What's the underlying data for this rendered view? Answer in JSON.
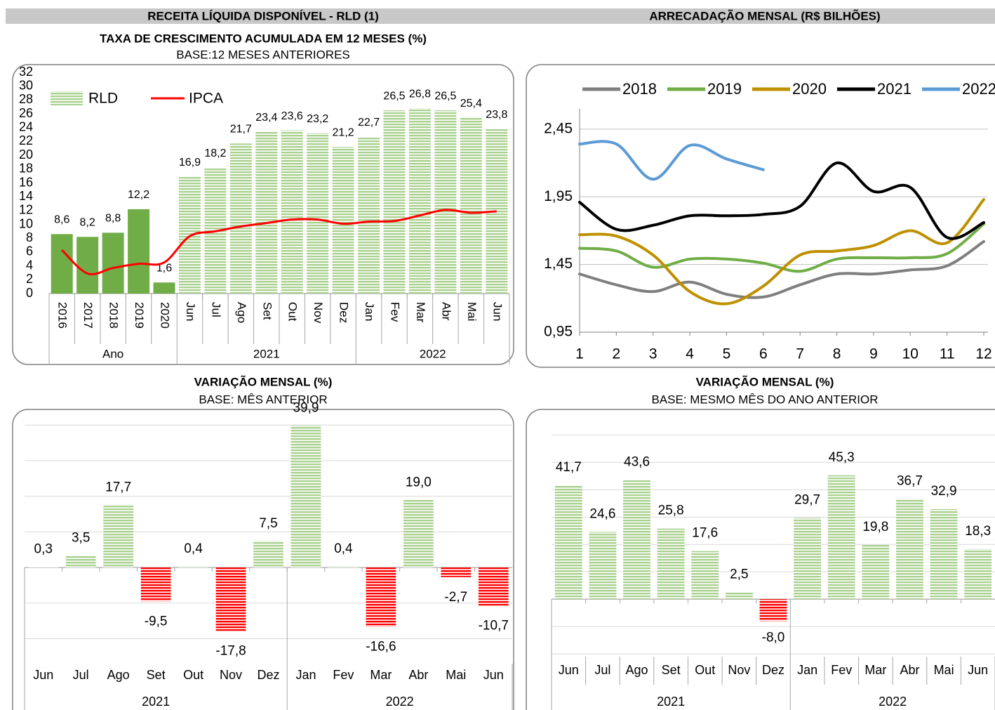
{
  "header": "RECEITA LÍQUIDA DISPONÍVEL - RLD (1)",
  "chart_data": [
    {
      "type": "bar",
      "title": "TAXA DE CRESCIMENTO ACUMULADA EM 12 MESES (%)",
      "subtitle": "BASE:12 MESES ANTERIORES",
      "category_groups": [
        {
          "name": "Ano",
          "categories": [
            "2016",
            "2017",
            "2018",
            "2019",
            "2020"
          ]
        },
        {
          "name": "2021",
          "categories": [
            "Jun",
            "Jul",
            "Ago",
            "Set",
            "Out",
            "Nov",
            "Dez"
          ]
        },
        {
          "name": "2022",
          "categories": [
            "Jan",
            "Fev",
            "Mar",
            "Abr",
            "Mai",
            "Jun"
          ]
        }
      ],
      "series": [
        {
          "name": "RLD",
          "type": "bar",
          "color": "#a9d18e",
          "colors": [
            "#70ad47",
            "#70ad47",
            "#70ad47",
            "#70ad47",
            "#70ad47",
            "#a9d18e",
            "#a9d18e",
            "#a9d18e",
            "#a9d18e",
            "#a9d18e",
            "#a9d18e",
            "#a9d18e",
            "#a9d18e",
            "#a9d18e",
            "#a9d18e",
            "#a9d18e",
            "#a9d18e",
            "#a9d18e"
          ],
          "hatched": [
            false,
            false,
            false,
            false,
            false,
            true,
            true,
            true,
            true,
            true,
            true,
            true,
            true,
            true,
            true,
            true,
            true,
            true
          ],
          "values": [
            8.6,
            8.2,
            8.8,
            12.2,
            1.6,
            16.9,
            18.2,
            21.7,
            23.4,
            23.6,
            23.2,
            21.2,
            22.7,
            26.5,
            26.8,
            26.5,
            25.4,
            23.8
          ],
          "value_labels": [
            "8,6",
            "8,2",
            "8,8",
            "12,2",
            "1,6",
            "16,9",
            "18,2",
            "21,7",
            "23,4",
            "23,6",
            "23,2",
            "21,2",
            "22,7",
            "26,5",
            "26,8",
            "26,5",
            "25,4",
            "23,8"
          ]
        },
        {
          "name": "IPCA",
          "type": "line",
          "color": "#ff0000",
          "values": [
            6.3,
            2.9,
            3.7,
            4.3,
            4.5,
            8.3,
            9.0,
            9.7,
            10.2,
            10.7,
            10.7,
            10.1,
            10.4,
            10.5,
            11.3,
            12.1,
            11.7,
            11.9
          ]
        }
      ],
      "ylim": [
        0,
        32
      ],
      "yticks": [
        0,
        2,
        4,
        6,
        8,
        10,
        12,
        14,
        16,
        18,
        20,
        22,
        24,
        26,
        28,
        30,
        32
      ],
      "grid": false,
      "ytick_labels": true
    },
    {
      "type": "line",
      "title": "ARRECADAÇÃO MENSAL (R$ BILHÕES)",
      "x": [
        1,
        2,
        3,
        4,
        5,
        6,
        7,
        8,
        9,
        10,
        11,
        12
      ],
      "series": [
        {
          "name": "2018",
          "color": "#7f7f7f",
          "values": [
            1.38,
            1.3,
            1.25,
            1.32,
            1.23,
            1.21,
            1.3,
            1.38,
            1.38,
            1.41,
            1.44,
            1.62
          ]
        },
        {
          "name": "2019",
          "color": "#70ad47",
          "values": [
            1.57,
            1.55,
            1.43,
            1.49,
            1.49,
            1.46,
            1.4,
            1.49,
            1.5,
            1.5,
            1.53,
            1.75
          ]
        },
        {
          "name": "2020",
          "color": "#bf9000",
          "values": [
            1.67,
            1.66,
            1.52,
            1.25,
            1.16,
            1.29,
            1.52,
            1.55,
            1.59,
            1.7,
            1.61,
            1.93
          ]
        },
        {
          "name": "2021",
          "color": "#000000",
          "values": [
            1.91,
            1.71,
            1.74,
            1.81,
            1.81,
            1.82,
            1.88,
            2.2,
            1.99,
            2.02,
            1.65,
            1.76
          ]
        },
        {
          "name": "2022",
          "color": "#5b9bd5",
          "values": [
            2.34,
            2.34,
            2.08,
            2.33,
            2.23,
            2.15,
            null,
            null,
            null,
            null,
            null,
            null
          ]
        }
      ],
      "xlim": [
        1,
        12
      ],
      "xticks": [
        1,
        2,
        3,
        4,
        5,
        6,
        7,
        8,
        9,
        10,
        11,
        12
      ],
      "ylim": [
        0.95,
        2.6
      ],
      "yticks": [
        {
          "value": 0.95,
          "label": "0,95"
        },
        {
          "value": 1.45,
          "label": "1,45"
        },
        {
          "value": 1.95,
          "label": "1,95"
        },
        {
          "value": 2.45,
          "label": "2,45"
        }
      ],
      "grid": true
    },
    {
      "type": "bar",
      "title": "VARIAÇÃO MENSAL (%)",
      "subtitle": "BASE: MÊS ANTERIOR",
      "category_groups": [
        {
          "name": "2021",
          "categories": [
            "Jun",
            "Jul",
            "Ago",
            "Set",
            "Out",
            "Nov",
            "Dez"
          ]
        },
        {
          "name": "2022",
          "categories": [
            "Jan",
            "Fev",
            "Mar",
            "Abr",
            "Mai",
            "Jun"
          ]
        }
      ],
      "values": [
        0.3,
        3.5,
        17.7,
        -9.5,
        0.4,
        -17.8,
        7.5,
        39.9,
        0.4,
        -16.6,
        19.0,
        -2.7,
        -10.7
      ],
      "value_labels": [
        "0,3",
        "3,5",
        "17,7",
        "-9,5",
        "0,4",
        "-17,8",
        "7,5",
        "39,9",
        "0,4",
        "-16,6",
        "19,0",
        "-2,7",
        "-10,7"
      ],
      "color": "#a9d18e",
      "negative_color": "#ff0000",
      "hatched": true,
      "ylim": [
        -27,
        43
      ],
      "yticks": [
        -20,
        -10,
        0,
        10,
        20,
        30,
        40
      ],
      "grid": true,
      "ytick_labels": false
    },
    {
      "type": "bar",
      "title": "VARIAÇÃO MENSAL (%)",
      "subtitle": "BASE: MESMO MÊS DO ANO ANTERIOR",
      "category_groups": [
        {
          "name": "2021",
          "categories": [
            "Jun",
            "Jul",
            "Ago",
            "Set",
            "Out",
            "Nov",
            "Dez"
          ]
        },
        {
          "name": "2022",
          "categories": [
            "Jan",
            "Fev",
            "Mar",
            "Abr",
            "Mai",
            "Jun"
          ]
        }
      ],
      "values": [
        41.7,
        24.6,
        43.6,
        25.8,
        17.6,
        2.5,
        -8.0,
        29.7,
        45.3,
        19.8,
        36.7,
        32.9,
        18.3
      ],
      "value_labels": [
        "41,7",
        "24,6",
        "43,6",
        "25,8",
        "17,6",
        "2,5",
        "-8,0",
        "29,7",
        "45,3",
        "19,8",
        "36,7",
        "32,9",
        "18,3"
      ],
      "color": "#a9d18e",
      "negative_color": "#ff0000",
      "hatched": true,
      "ylim": [
        -21,
        65
      ],
      "yticks": [
        -20,
        -10,
        0,
        10,
        20,
        30,
        40,
        50,
        60
      ],
      "grid": true,
      "ytick_labels": false
    }
  ]
}
